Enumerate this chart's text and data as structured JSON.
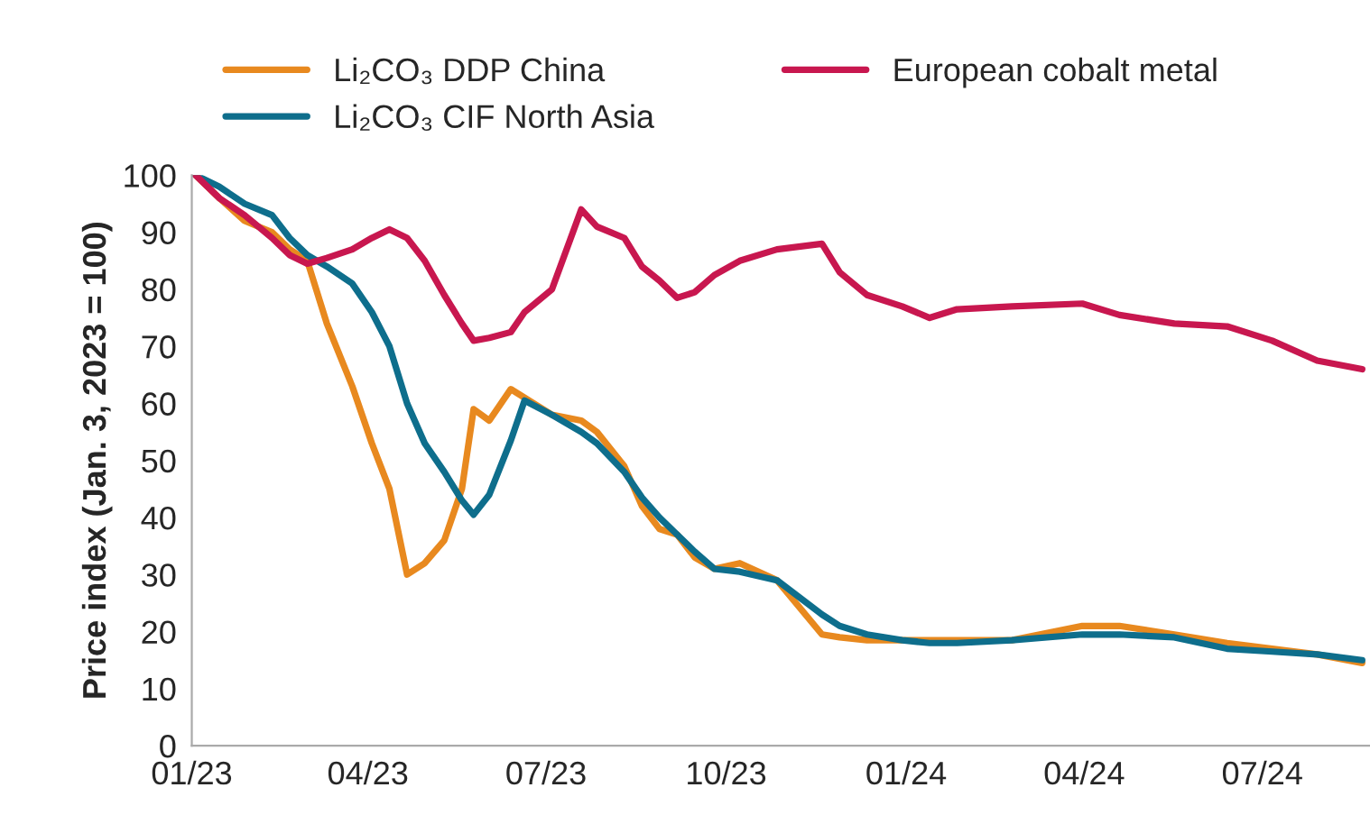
{
  "chart_data": {
    "type": "line",
    "ylabel": "Price index (Jan. 3, 2023 = 100)",
    "x": [
      "2023-01-03",
      "2023-01-15",
      "2023-01-28",
      "2023-02-11",
      "2023-02-20",
      "2023-03-01",
      "2023-03-11",
      "2023-03-24",
      "2023-04-03",
      "2023-04-12",
      "2023-04-21",
      "2023-04-30",
      "2023-05-10",
      "2023-05-19",
      "2023-05-25",
      "2023-06-02",
      "2023-06-13",
      "2023-06-20",
      "2023-07-04",
      "2023-07-19",
      "2023-07-27",
      "2023-08-10",
      "2023-08-19",
      "2023-08-28",
      "2023-09-06",
      "2023-09-15",
      "2023-09-25",
      "2023-10-08",
      "2023-10-27",
      "2023-11-19",
      "2023-11-28",
      "2023-12-12",
      "2023-12-30",
      "2024-01-13",
      "2024-01-27",
      "2024-02-24",
      "2024-03-31",
      "2024-04-19",
      "2024-05-17",
      "2024-06-13",
      "2024-07-06",
      "2024-07-29",
      "2024-08-21"
    ],
    "series": [
      {
        "name": "Li₂CO₃ DDP China",
        "color": "#e8891f",
        "values": [
          100,
          96,
          92,
          90,
          87,
          85,
          74,
          63,
          53,
          45,
          30,
          32,
          36,
          45,
          59,
          57,
          62.5,
          61,
          58,
          57,
          55,
          49,
          42,
          38,
          37,
          33,
          31,
          32,
          29,
          19.5,
          19,
          18.5,
          18.5,
          18.5,
          18.5,
          18.5,
          21,
          21,
          19.5,
          18,
          17,
          16,
          14.5
        ]
      },
      {
        "name": "Li₂CO₃ CIF North Asia",
        "color": "#0e6e8c",
        "values": [
          100,
          98,
          95,
          93,
          89,
          86,
          84,
          81,
          76,
          70,
          60,
          53,
          48,
          43,
          40.5,
          44,
          53.5,
          60.5,
          58,
          55,
          53,
          48,
          43.5,
          40,
          37,
          34,
          31,
          30.5,
          29,
          23,
          21,
          19.5,
          18.5,
          18,
          18,
          18.5,
          19.5,
          19.5,
          19,
          17,
          16.5,
          16,
          15
        ]
      },
      {
        "name": "European cobalt metal",
        "color": "#c8174f",
        "values": [
          100,
          96,
          93,
          89,
          86,
          84.5,
          85.5,
          87,
          89,
          90.5,
          89,
          85,
          79,
          74,
          71,
          71.5,
          72.5,
          76,
          80,
          94,
          91,
          89,
          84,
          81.5,
          78.5,
          79.5,
          82.5,
          85,
          87,
          88,
          83,
          79,
          77,
          75,
          76.5,
          77,
          77.5,
          75.5,
          74,
          73.5,
          71,
          67.5,
          66
        ]
      }
    ],
    "xlim": [
      "2023-01-01",
      "2024-08-25"
    ],
    "xticks": [
      {
        "value": "2023-01-01",
        "label": "01/23"
      },
      {
        "value": "2023-04-01",
        "label": "04/23"
      },
      {
        "value": "2023-07-01",
        "label": "07/23"
      },
      {
        "value": "2023-10-01",
        "label": "10/23"
      },
      {
        "value": "2024-01-01",
        "label": "01/24"
      },
      {
        "value": "2024-04-01",
        "label": "04/24"
      },
      {
        "value": "2024-07-01",
        "label": "07/24"
      }
    ],
    "ylim": [
      0,
      100
    ],
    "yticks": [
      0,
      10,
      20,
      30,
      40,
      50,
      60,
      70,
      80,
      90,
      100
    ],
    "grid": false,
    "legend": "top",
    "line_style": "solid"
  }
}
